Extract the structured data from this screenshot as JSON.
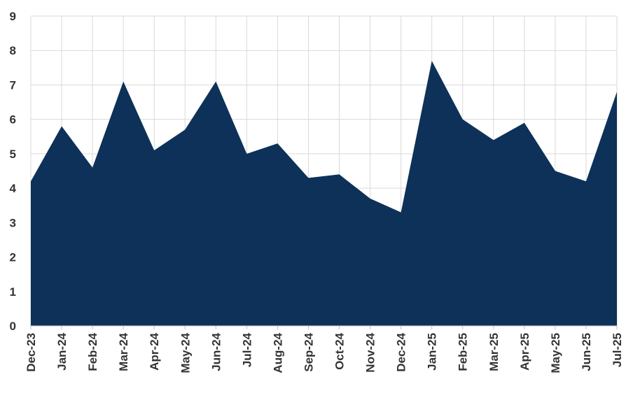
{
  "chart_data": {
    "type": "area",
    "title": "",
    "xlabel": "",
    "ylabel": "",
    "categories": [
      "Dec-23",
      "Jan-24",
      "Feb-24",
      "Mar-24",
      "Apr-24",
      "May-24",
      "Jun-24",
      "Jul-24",
      "Aug-24",
      "Sep-24",
      "Oct-24",
      "Nov-24",
      "Dec-24",
      "Jan-25",
      "Feb-25",
      "Mar-25",
      "Apr-25",
      "May-25",
      "Jun-25",
      "Jul-25"
    ],
    "series": [
      {
        "values": [
          4.2,
          5.8,
          4.6,
          7.1,
          5.1,
          5.7,
          7.1,
          5.0,
          5.3,
          4.3,
          4.4,
          3.7,
          3.3,
          7.7,
          6.0,
          5.4,
          5.9,
          4.5,
          4.2,
          6.8
        ],
        "color": "#0d3158"
      }
    ],
    "ylim": [
      0,
      9
    ],
    "yticks": [
      0,
      1,
      2,
      3,
      4,
      5,
      6,
      7,
      8,
      9
    ],
    "grid": true,
    "legend": "none"
  }
}
